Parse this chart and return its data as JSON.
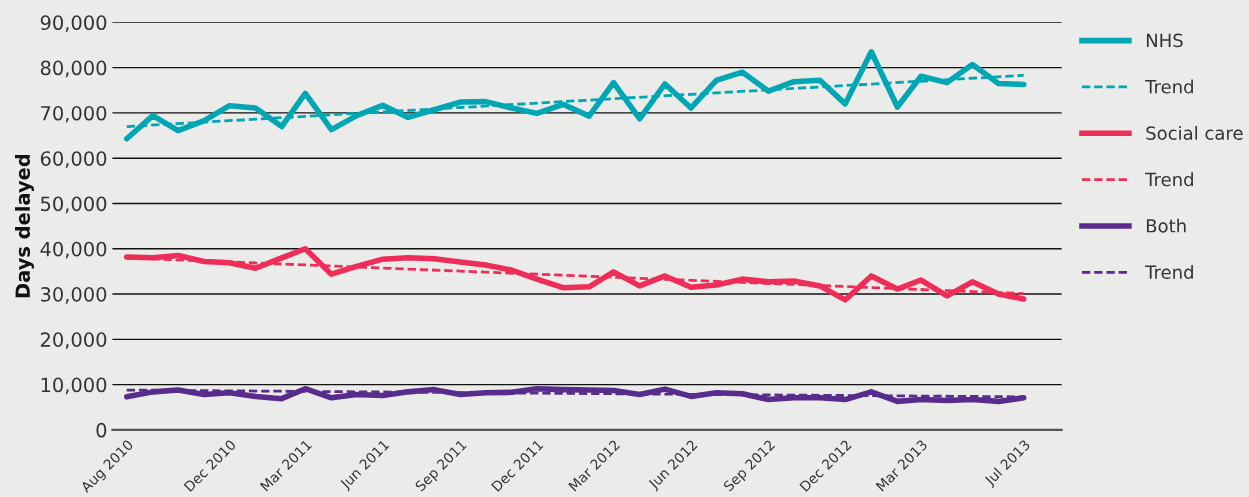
{
  "chart_data": {
    "type": "line",
    "ylabel": "Days delayed",
    "x": [
      "2010-08",
      "2010-09",
      "2010-10",
      "2010-11",
      "2010-12",
      "2011-01",
      "2011-02",
      "2011-03",
      "2011-04",
      "2011-05",
      "2011-06",
      "2011-07",
      "2011-08",
      "2011-09",
      "2011-10",
      "2011-11",
      "2011-12",
      "2012-01",
      "2012-02",
      "2012-03",
      "2012-04",
      "2012-05",
      "2012-06",
      "2012-07",
      "2012-08",
      "2012-09",
      "2012-10",
      "2012-11",
      "2012-12",
      "2013-01",
      "2013-02",
      "2013-03",
      "2013-04",
      "2013-05",
      "2013-06",
      "2013-07"
    ],
    "xlim": [
      "2010-07-15",
      "2013-08-15"
    ],
    "xticks": [
      {
        "value": "2010-08",
        "label": "Aug 2010"
      },
      {
        "value": "2010-12",
        "label": "Dec 2010"
      },
      {
        "value": "2011-03",
        "label": "Mar 2011"
      },
      {
        "value": "2011-06",
        "label": "Jun 2011"
      },
      {
        "value": "2011-09",
        "label": "Sep 2011"
      },
      {
        "value": "2011-12",
        "label": "Dec 2011"
      },
      {
        "value": "2012-03",
        "label": "Mar 2012"
      },
      {
        "value": "2012-06",
        "label": "Jun 2012"
      },
      {
        "value": "2012-09",
        "label": "Sep 2012"
      },
      {
        "value": "2012-12",
        "label": "Dec 2012"
      },
      {
        "value": "2013-03",
        "label": "Mar 2013"
      },
      {
        "value": "2013-07",
        "label": "Jul 2013"
      }
    ],
    "ylim": [
      0,
      90000
    ],
    "yticks": [
      {
        "value": 0,
        "label": "0"
      },
      {
        "value": 10000,
        "label": "10,000"
      },
      {
        "value": 20000,
        "label": "20,000"
      },
      {
        "value": 30000,
        "label": "30,000"
      },
      {
        "value": 40000,
        "label": "40,000"
      },
      {
        "value": 50000,
        "label": "50,000"
      },
      {
        "value": 60000,
        "label": "60,000"
      },
      {
        "value": 70000,
        "label": "70,000"
      },
      {
        "value": 80000,
        "label": "80,000"
      },
      {
        "value": 90000,
        "label": "90,000"
      }
    ],
    "grid": "y",
    "legend": "right",
    "series": [
      {
        "name": "NHS",
        "color": "#00a6b4",
        "line_style": "solid",
        "values": [
          64300,
          69400,
          66100,
          68300,
          71600,
          71100,
          67000,
          74300,
          66300,
          69400,
          71700,
          69000,
          70700,
          72400,
          72500,
          71100,
          69900,
          71900,
          69300,
          76700,
          68700,
          76400,
          71100,
          77200,
          79000,
          74800,
          76900,
          77200,
          72000,
          83500,
          71300,
          78100,
          76700,
          80700,
          76500,
          76300
        ]
      },
      {
        "name": "Trend",
        "color": "#00a6b4",
        "line_style": "dashed",
        "x": [
          "2010-08",
          "2013-07"
        ],
        "values": [
          67000,
          78300
        ]
      },
      {
        "name": "Social care",
        "color": "#ee2d58",
        "line_style": "solid",
        "values": [
          38200,
          38000,
          38500,
          37200,
          36900,
          35700,
          38000,
          40000,
          34400,
          36100,
          37700,
          38000,
          37800,
          37100,
          36400,
          35300,
          33300,
          31400,
          31600,
          34900,
          31800,
          34000,
          31500,
          32000,
          33300,
          32700,
          32900,
          31800,
          28700,
          34000,
          31100,
          33100,
          29600,
          32700,
          30000,
          28900
        ]
      },
      {
        "name": "Trend",
        "color": "#ee2d58",
        "line_style": "dashed",
        "x": [
          "2010-08",
          "2013-07"
        ],
        "values": [
          38000,
          30100
        ]
      },
      {
        "name": "Both",
        "color": "#582c8c",
        "line_style": "solid",
        "values": [
          7300,
          8400,
          8800,
          7800,
          8200,
          7400,
          6900,
          9100,
          7100,
          7800,
          7600,
          8400,
          8900,
          7800,
          8200,
          8300,
          9100,
          8900,
          8800,
          8700,
          7800,
          9000,
          7400,
          8200,
          8000,
          6700,
          7100,
          7100,
          6700,
          8400,
          6300,
          6700,
          6500,
          6700,
          6300,
          7100
        ]
      },
      {
        "name": "Trend",
        "color": "#582c8c",
        "line_style": "dashed",
        "x": [
          "2010-08",
          "2013-07"
        ],
        "values": [
          8800,
          7300
        ]
      }
    ]
  }
}
